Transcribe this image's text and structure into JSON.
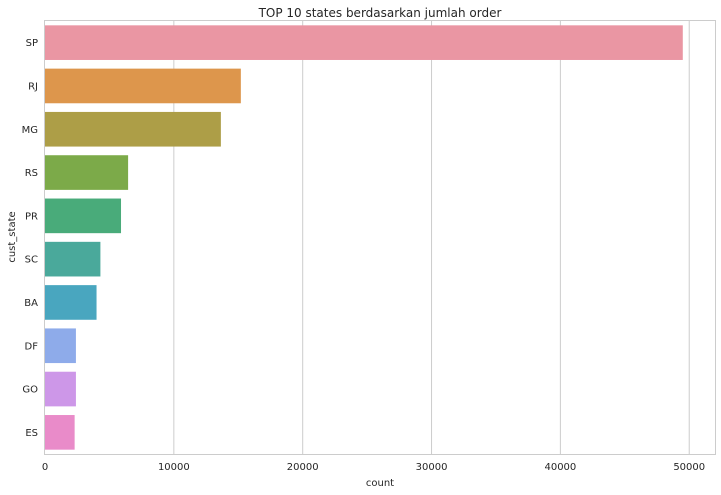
{
  "chart_data": {
    "type": "bar",
    "orientation": "horizontal",
    "title": "TOP 10 states berdasarkan jumlah order",
    "xlabel": "count",
    "ylabel": "cust_state",
    "categories": [
      "SP",
      "RJ",
      "MG",
      "RS",
      "PR",
      "SC",
      "BA",
      "DF",
      "GO",
      "ES"
    ],
    "values": [
      49500,
      15200,
      13650,
      6450,
      5900,
      4300,
      4000,
      2400,
      2400,
      2300
    ],
    "xlim": [
      0,
      52000
    ],
    "xticks": [
      "0",
      "10000",
      "20000",
      "30000",
      "40000",
      "50000"
    ],
    "grid": true,
    "colors": [
      "#ea96a3",
      "#dd964c",
      "#ad9e47",
      "#7caa49",
      "#49ab7a",
      "#4aa99b",
      "#49a6bf",
      "#8eabea",
      "#cd97e8",
      "#e98bc9"
    ]
  }
}
